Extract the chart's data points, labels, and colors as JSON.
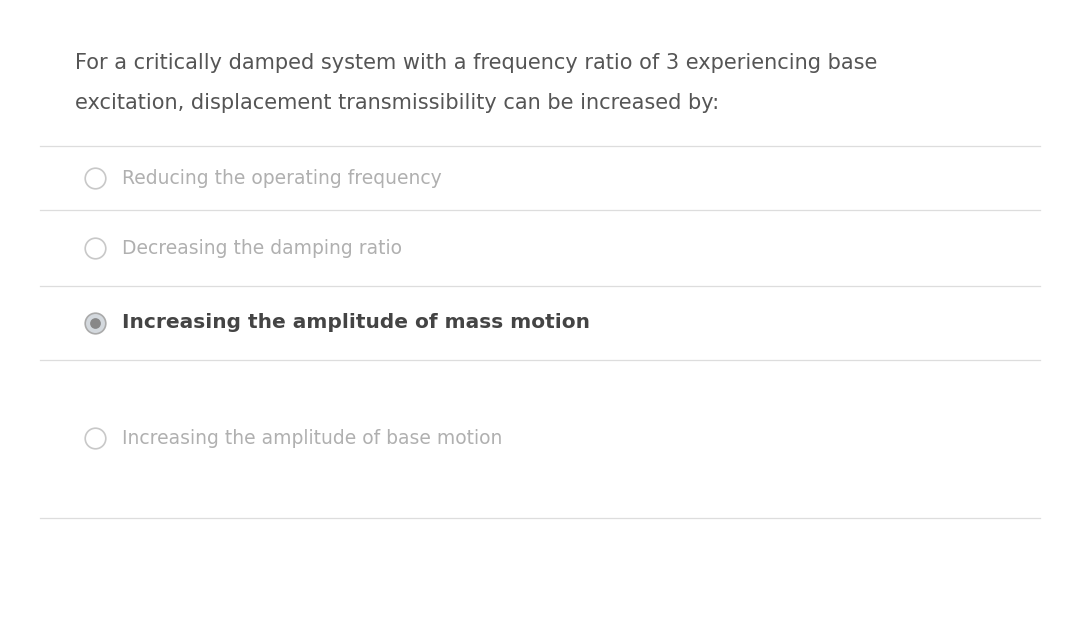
{
  "background_color": "#ffffff",
  "question_text_line1": "For a critically damped system with a frequency ratio of 3 experiencing base",
  "question_text_line2": "excitation, displacement transmissibility can be increased by:",
  "options": [
    {
      "text": "Reducing the operating frequency",
      "selected": false
    },
    {
      "text": "Decreasing the damping ratio",
      "selected": false
    },
    {
      "text": "Increasing the amplitude of mass motion",
      "selected": true
    },
    {
      "text": "Increasing the amplitude of base motion",
      "selected": false
    }
  ],
  "question_color": "#555555",
  "option_text_color_unselected": "#b0b0b0",
  "option_text_color_selected": "#444444",
  "radio_edge_unselected": "#c8c8c8",
  "radio_face_unselected": "#ffffff",
  "radio_edge_selected": "#aaaaaa",
  "radio_face_selected": "#d4d9de",
  "radio_inner_selected": "#888888",
  "divider_color": "#dddddd",
  "question_fontsize": 15,
  "option_fontsize": 13.5,
  "selected_fontsize": 14.5,
  "figsize": [
    10.8,
    6.18
  ],
  "dpi": 100
}
